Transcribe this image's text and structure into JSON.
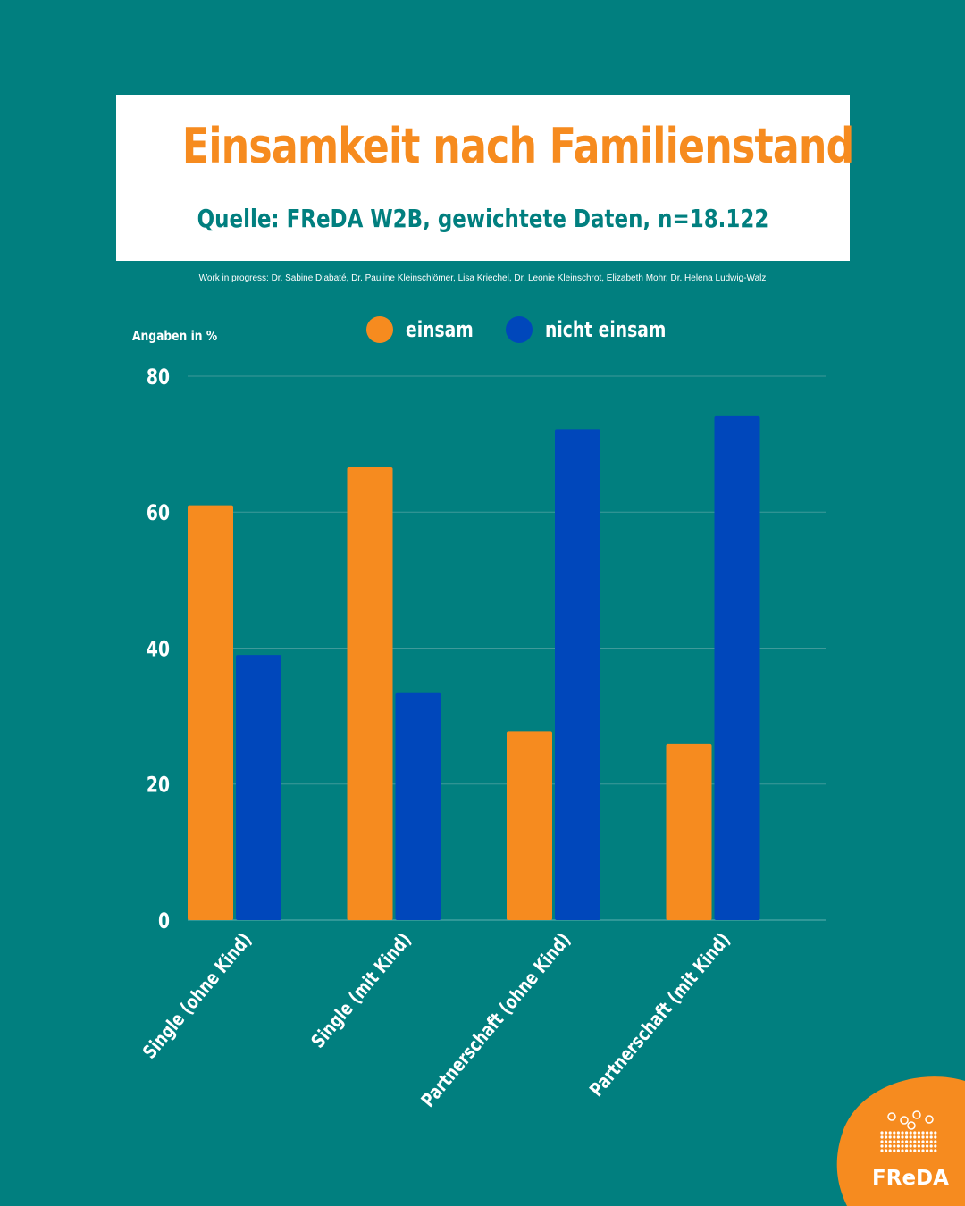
{
  "header": {
    "title": "Einsamkeit nach Familienstand",
    "subtitle": "Quelle:  FReDA W2B, gewichtete Daten, n=18.122"
  },
  "credits": "Work in progress: Dr. Sabine Diabaté, Dr. Pauline Kleinschlömer, Lisa Kriechel, Dr. Leonie Kleinschrot, Elizabeth Mohr, Dr. Helena Ludwig-Walz",
  "logo": {
    "text": "FReDA",
    "color": "#f68b1f"
  },
  "colors": {
    "background": "#017f7f",
    "einsam": "#f68b1f",
    "nicht_einsam": "#0047bb"
  },
  "chart_data": {
    "type": "bar",
    "title": "Einsamkeit nach Familienstand",
    "ylabel": "Angaben in %",
    "xlabel": "",
    "ylim": [
      0,
      80
    ],
    "yticks": [
      0,
      20,
      40,
      60,
      80
    ],
    "grid": true,
    "legend_position": "top-center",
    "categories": [
      "Single (ohne Kind)",
      "Single (mit Kind)",
      "Partnerschaft (ohne Kind)",
      "Partnerschaft (mit Kind)"
    ],
    "series": [
      {
        "name": "einsam",
        "color": "#f68b1f",
        "values": [
          61,
          66.6,
          27.8,
          25.9
        ]
      },
      {
        "name": "nicht einsam",
        "color": "#0047bb",
        "values": [
          39,
          33.4,
          72.2,
          74.1
        ]
      }
    ]
  }
}
